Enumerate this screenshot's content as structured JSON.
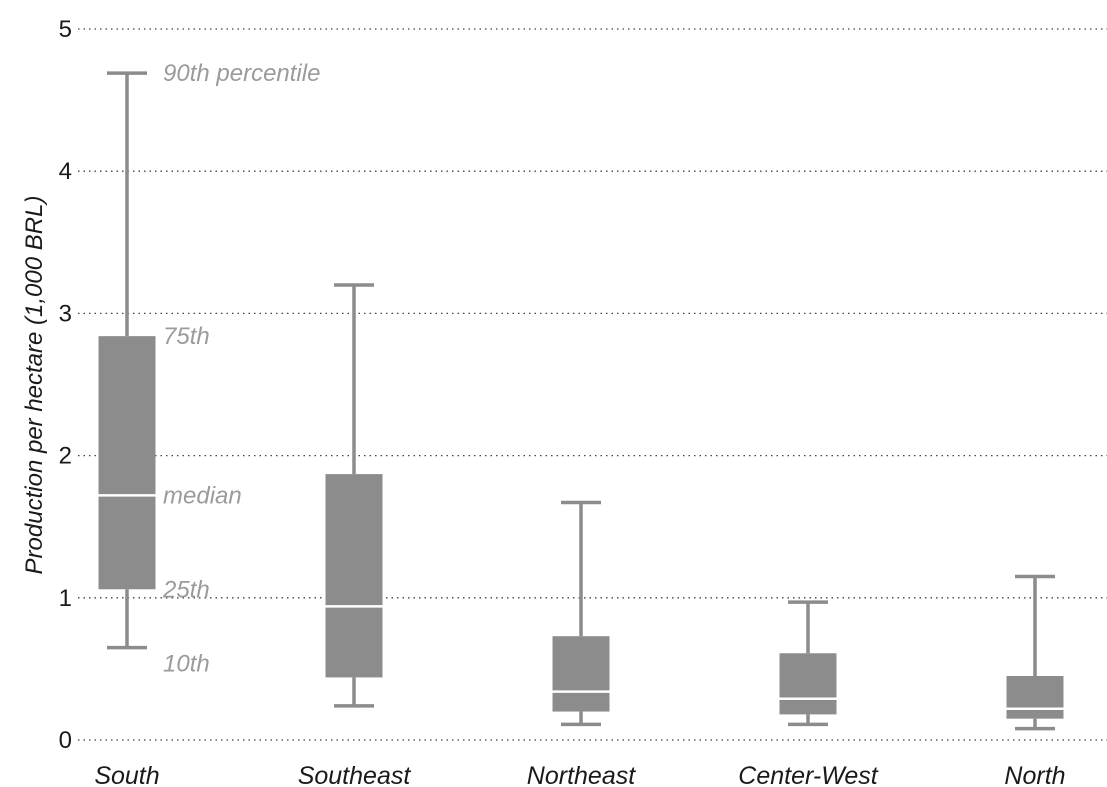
{
  "chart_data": {
    "type": "box",
    "ylabel": "Production per hectare (1,000 BRL)",
    "ylim": [
      0,
      5
    ],
    "yticks": [
      "0",
      "1",
      "2",
      "3",
      "4",
      "5"
    ],
    "grid": true,
    "color": "#8c8c8c",
    "median_color": "#ffffff",
    "annotation_color": "#9b9b9b",
    "categories": [
      "South",
      "Southeast",
      "Northeast",
      "Center-West",
      "North"
    ],
    "boxes": [
      {
        "name": "South",
        "p10": 0.65,
        "p25": 1.06,
        "median": 1.72,
        "p75": 2.84,
        "p90": 4.69
      },
      {
        "name": "Southeast",
        "p10": 0.24,
        "p25": 0.44,
        "median": 0.94,
        "p75": 1.87,
        "p90": 3.2
      },
      {
        "name": "Northeast",
        "p10": 0.11,
        "p25": 0.2,
        "median": 0.34,
        "p75": 0.73,
        "p90": 1.67
      },
      {
        "name": "Center-West",
        "p10": 0.11,
        "p25": 0.18,
        "median": 0.29,
        "p75": 0.61,
        "p90": 0.97
      },
      {
        "name": "North",
        "p10": 0.08,
        "p25": 0.15,
        "median": 0.22,
        "p75": 0.45,
        "p90": 1.15
      }
    ],
    "annotations": {
      "p90": "90th percentile",
      "p75": "75th",
      "median": "median",
      "p25": "25th",
      "p10": "10th"
    }
  }
}
